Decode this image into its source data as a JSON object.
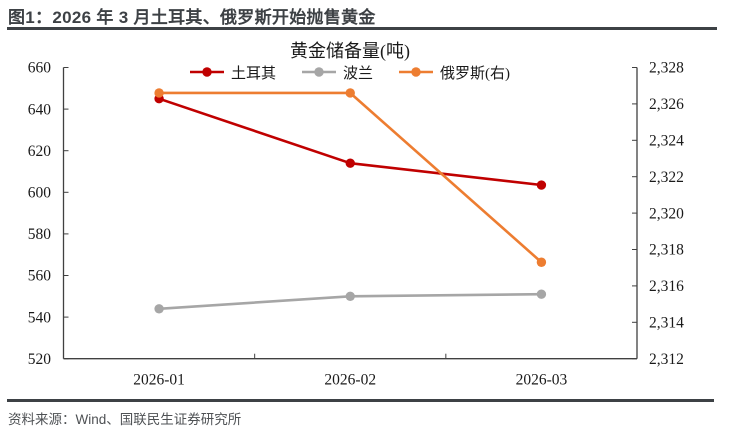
{
  "header": {
    "title": "图1：2026 年 3 月土耳其、俄罗斯开始抛售黄金"
  },
  "footer": {
    "source": "资料来源：Wind、国联民生证券研究所"
  },
  "colors": {
    "rule": "#3d4145",
    "axis": "#404040",
    "tick_text": "#1a1a1a",
    "turkey_red": "#C00000",
    "poland_gray": "#A6A6A6",
    "russia_orange": "#ED7D31"
  },
  "chart_data": {
    "type": "line",
    "title": "黄金储备量(吨)",
    "categories": [
      "2026-01",
      "2026-02",
      "2026-03"
    ],
    "series": [
      {
        "id": "turkey",
        "name": "土耳其",
        "axis": "left",
        "color": "#C00000",
        "values": [
          645,
          614,
          603.5
        ]
      },
      {
        "id": "poland",
        "name": "波兰",
        "axis": "left",
        "color": "#A6A6A6",
        "values": [
          544,
          550,
          551
        ]
      },
      {
        "id": "russia",
        "name": "俄罗斯(右)",
        "axis": "right",
        "color": "#ED7D31",
        "values": [
          2326.6,
          2326.6,
          2317.3
        ]
      }
    ],
    "left_axis": {
      "min": 520,
      "max": 660,
      "step": 20,
      "tick_labels": [
        "660",
        "640",
        "620",
        "600",
        "580",
        "560",
        "540",
        "520"
      ]
    },
    "right_axis": {
      "min": 2312,
      "max": 2328,
      "step": 2,
      "tick_labels": [
        "2,328",
        "2,326",
        "2,324",
        "2,322",
        "2,320",
        "2,318",
        "2,316",
        "2,314",
        "2,312"
      ]
    },
    "legend_position": "top",
    "grid": false
  }
}
